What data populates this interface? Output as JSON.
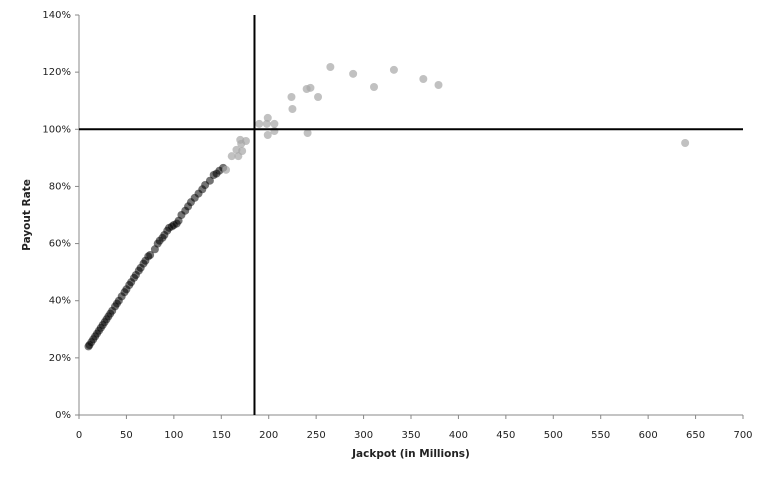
{
  "chart_data": {
    "type": "scatter",
    "x_label": "Jackpot (in Millions)",
    "y_label": "Payout Rate",
    "xlim": [
      0,
      700
    ],
    "xticks": [
      0,
      50,
      100,
      150,
      200,
      250,
      300,
      350,
      400,
      450,
      500,
      550,
      600,
      650,
      700
    ],
    "ylim": [
      0,
      140
    ],
    "yticks": [
      {
        "value": 0,
        "label": "0%"
      },
      {
        "value": 20,
        "label": "20%"
      },
      {
        "value": 40,
        "label": "40%"
      },
      {
        "value": 60,
        "label": "60%"
      },
      {
        "value": 80,
        "label": "80%"
      },
      {
        "value": 100,
        "label": "100%"
      },
      {
        "value": 120,
        "label": "120%"
      },
      {
        "value": 140,
        "label": "140%"
      }
    ],
    "reference_lines": {
      "x": 185,
      "y": 100
    },
    "series": [
      {
        "color": "#000000",
        "x": [
          10,
          11,
          13,
          15,
          17,
          19,
          21,
          23,
          25,
          27,
          29,
          31,
          33,
          35,
          38,
          40,
          42,
          45,
          48,
          50,
          53,
          55,
          58,
          60,
          63,
          65,
          68,
          70,
          73,
          75,
          80,
          83,
          85,
          88,
          90,
          93,
          95,
          98,
          100,
          103,
          105,
          108,
          112,
          115,
          118,
          122,
          126,
          130,
          133,
          138,
          142,
          145,
          148,
          152
        ],
        "values": [
          24,
          24.5,
          25.5,
          26.5,
          27.5,
          28.5,
          29.5,
          30.5,
          31.5,
          32.5,
          33.5,
          34.5,
          35.5,
          36.5,
          38,
          39,
          40,
          41.5,
          43,
          44,
          45.5,
          46.5,
          48,
          49,
          50.5,
          51.5,
          53,
          54,
          55.5,
          56,
          58,
          60,
          61,
          62,
          63,
          64.5,
          65.5,
          66,
          66.5,
          67,
          68,
          70,
          71.5,
          73,
          74.5,
          76,
          77.5,
          79,
          80.5,
          82,
          84,
          84.5,
          85.5,
          86.5
        ]
      },
      {
        "color": "#a6a6a6",
        "x": [
          155,
          161,
          166,
          168,
          170,
          171,
          172,
          176,
          190,
          198,
          199,
          199,
          206,
          206,
          224,
          225,
          240,
          241,
          244,
          252,
          265,
          289,
          311,
          332,
          363,
          379,
          639
        ],
        "values": [
          85.8,
          90.6,
          92.8,
          90.6,
          96.3,
          94.9,
          92.4,
          95.9,
          101.9,
          101.9,
          104,
          98,
          101.9,
          99.4,
          111.3,
          107.1,
          114.1,
          98.7,
          114.5,
          111.3,
          121.8,
          119.4,
          114.8,
          120.8,
          117.6,
          115.5,
          95.2
        ]
      }
    ]
  }
}
